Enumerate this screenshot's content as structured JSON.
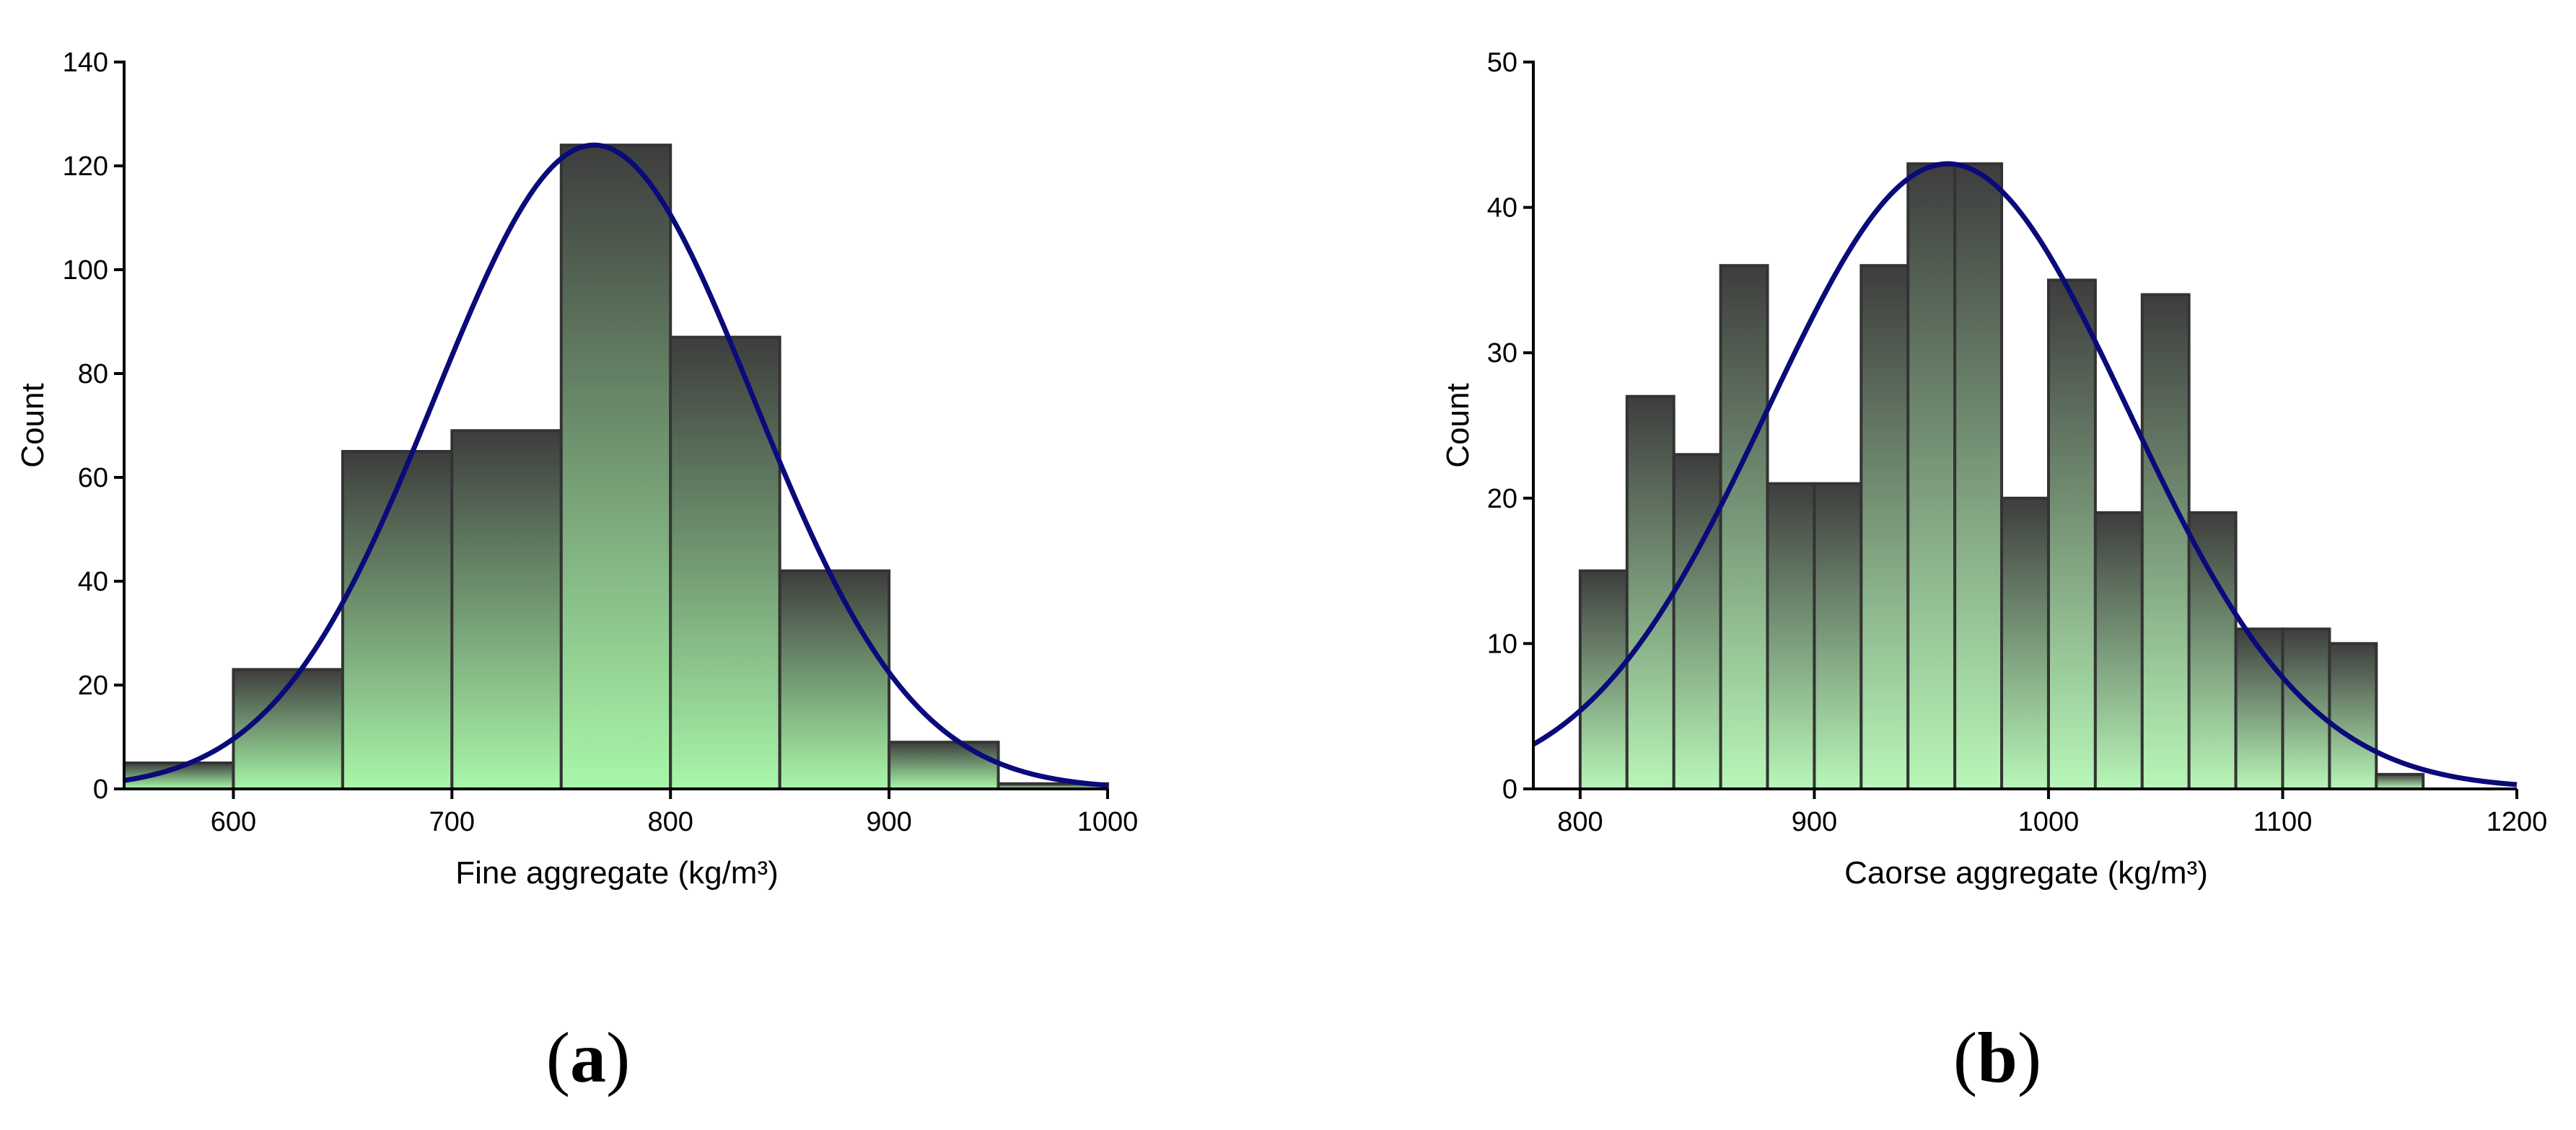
{
  "chart_data": [
    {
      "type": "histogram",
      "panel_label": {
        "open": "(",
        "letter": "a",
        "close": ")"
      },
      "xlabel": "Fine aggregate (kg/m³)",
      "ylabel": "Count",
      "xlim": [
        550,
        1000
      ],
      "ylim": [
        0,
        140
      ],
      "xticks": [
        600,
        700,
        800,
        900,
        1000
      ],
      "yticks": [
        0,
        20,
        40,
        60,
        80,
        100,
        120,
        140
      ],
      "bins": [
        {
          "start": 550,
          "end": 600,
          "count": 5
        },
        {
          "start": 600,
          "end": 650,
          "count": 23
        },
        {
          "start": 650,
          "end": 700,
          "count": 65
        },
        {
          "start": 700,
          "end": 750,
          "count": 69
        },
        {
          "start": 750,
          "end": 800,
          "count": 124
        },
        {
          "start": 800,
          "end": 850,
          "count": 87
        },
        {
          "start": 850,
          "end": 900,
          "count": 42
        },
        {
          "start": 900,
          "end": 950,
          "count": 9
        },
        {
          "start": 950,
          "end": 1000,
          "count": 1
        }
      ],
      "normal_curve": {
        "mean": 765,
        "sd": 73,
        "peak": 124
      },
      "colors": {
        "bar_top": "#3d3d3d",
        "bar_bottom": "#a9f7a9",
        "curve": "#0a0a7a",
        "edge": "#333333"
      }
    },
    {
      "type": "histogram",
      "panel_label": {
        "open": "(",
        "letter": "b",
        "close": ")"
      },
      "xlabel": "Caorse aggregate (kg/m³)",
      "ylabel": "Count",
      "xlim": [
        780,
        1200
      ],
      "ylim": [
        0,
        50
      ],
      "xticks": [
        800,
        900,
        1000,
        1100,
        1200
      ],
      "yticks": [
        0,
        10,
        20,
        30,
        40,
        50
      ],
      "bins": [
        {
          "start": 800,
          "end": 820,
          "count": 15
        },
        {
          "start": 820,
          "end": 840,
          "count": 27
        },
        {
          "start": 840,
          "end": 860,
          "count": 23
        },
        {
          "start": 860,
          "end": 880,
          "count": 36
        },
        {
          "start": 880,
          "end": 900,
          "count": 21
        },
        {
          "start": 900,
          "end": 920,
          "count": 21
        },
        {
          "start": 920,
          "end": 940,
          "count": 36
        },
        {
          "start": 940,
          "end": 960,
          "count": 43
        },
        {
          "start": 960,
          "end": 980,
          "count": 43
        },
        {
          "start": 980,
          "end": 1000,
          "count": 20
        },
        {
          "start": 1000,
          "end": 1020,
          "count": 35
        },
        {
          "start": 1020,
          "end": 1040,
          "count": 19
        },
        {
          "start": 1040,
          "end": 1060,
          "count": 34
        },
        {
          "start": 1060,
          "end": 1080,
          "count": 19
        },
        {
          "start": 1080,
          "end": 1100,
          "count": 11
        },
        {
          "start": 1100,
          "end": 1120,
          "count": 11
        },
        {
          "start": 1120,
          "end": 1140,
          "count": 10
        },
        {
          "start": 1140,
          "end": 1160,
          "count": 1
        }
      ],
      "normal_curve": {
        "mean": 957,
        "sd": 77,
        "peak": 43
      },
      "colors": {
        "bar_top": "#3d3d3d",
        "bar_bottom": "#b8f7b8",
        "curve": "#0a0a7a",
        "edge": "#333333"
      }
    }
  ]
}
